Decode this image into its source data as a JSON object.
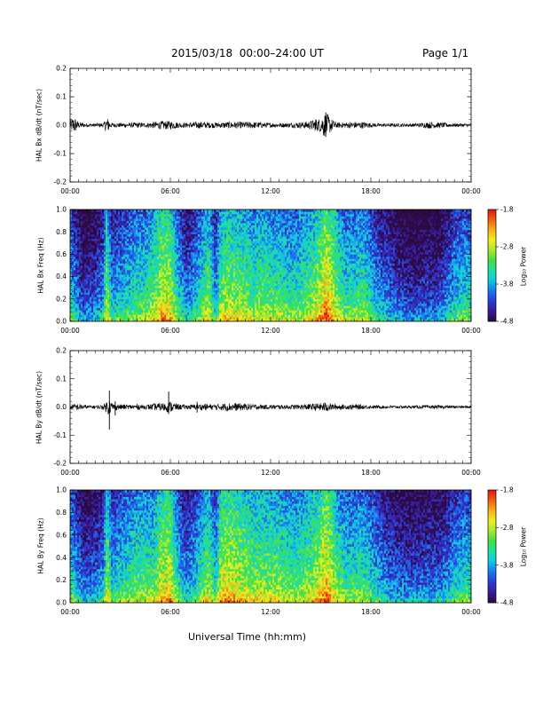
{
  "header": {
    "title": "2015/03/18  00:00–24:00 UT",
    "page": "Page 1/1"
  },
  "xlabel": "Universal Time (hh:mm)",
  "colors": {
    "trace": "#000000",
    "axes": "#000000"
  },
  "colorbar": {
    "title": "Log₁₀ Power",
    "range": [
      -4.8,
      -1.8
    ],
    "tick_labels": [
      "-1.8",
      "-2.8",
      "-3.8",
      "-4.8"
    ],
    "colormap": [
      "#2a0a40",
      "#3a1a9a",
      "#2a3cd6",
      "#1a78f0",
      "#10c8e8",
      "#20e0a0",
      "#40e040",
      "#a8e830",
      "#f0f020",
      "#f8b018",
      "#f06010",
      "#e81010"
    ]
  },
  "chart_data": [
    {
      "type": "line",
      "panel": "bx-dbdt",
      "ylabel": "HAL Bx dB/dt (nT/sec)",
      "x_range": [
        0,
        24
      ],
      "xtick_labels": [
        "00:00",
        "06:00",
        "12:00",
        "18:00",
        "00:00"
      ],
      "ylim": [
        -0.2,
        0.2
      ],
      "ytick_labels": [
        "0.2",
        "0.1",
        "0.0",
        "-0.1",
        "-0.2"
      ],
      "envelope_hours": [
        0,
        0.25,
        0.5,
        1,
        1.5,
        2,
        2.2,
        2.4,
        2.6,
        3,
        3.5,
        4,
        4.5,
        5,
        5.5,
        6,
        6.5,
        7,
        7.5,
        8,
        8.5,
        9,
        9.5,
        10,
        10.5,
        11,
        11.5,
        12,
        12.5,
        13,
        13.5,
        14,
        14.5,
        15,
        15.2,
        15.4,
        15.6,
        15.8,
        16,
        16.5,
        17,
        17.5,
        18,
        18.5,
        19,
        19.5,
        20,
        20.5,
        21,
        21.5,
        22,
        22.5,
        23,
        23.5,
        24
      ],
      "envelope_amplitude": [
        0.02,
        0.03,
        0.012,
        0.006,
        0.006,
        0.008,
        0.03,
        0.01,
        0.008,
        0.008,
        0.008,
        0.01,
        0.008,
        0.012,
        0.015,
        0.015,
        0.01,
        0.008,
        0.012,
        0.012,
        0.01,
        0.01,
        0.012,
        0.012,
        0.012,
        0.012,
        0.01,
        0.008,
        0.008,
        0.008,
        0.01,
        0.012,
        0.018,
        0.025,
        0.045,
        0.04,
        0.025,
        0.015,
        0.01,
        0.01,
        0.012,
        0.012,
        0.008,
        0.006,
        0.006,
        0.006,
        0.006,
        0.006,
        0.008,
        0.012,
        0.01,
        0.008,
        0.006,
        0.006,
        0.006
      ],
      "spikes": [
        {
          "hour": 2.3,
          "min": -0.015,
          "max": 0.012
        },
        {
          "hour": 15.3,
          "min": -0.03,
          "max": 0.045
        },
        {
          "hour": 14.7,
          "min": -0.015,
          "max": 0.02
        }
      ]
    },
    {
      "type": "heatmap",
      "panel": "bx-spectrogram",
      "ylabel": "HAL Bx Freq (Hz)",
      "x_range": [
        0,
        24
      ],
      "xtick_labels": [
        "00:00",
        "06:00",
        "12:00",
        "18:00",
        "00:00"
      ],
      "ylim": [
        0,
        1.0
      ],
      "ytick_labels": [
        "1.0",
        "0.8",
        "0.6",
        "0.4",
        "0.2",
        "0.0"
      ],
      "zlim": [
        -4.8,
        -1.8
      ],
      "activity_hours": [
        0,
        0.3,
        0.8,
        1.5,
        2,
        2.2,
        2.5,
        3,
        3.5,
        4,
        4.5,
        5,
        5.5,
        6,
        6.5,
        7,
        7.5,
        8,
        8.3,
        8.7,
        9,
        9.5,
        10,
        10.5,
        11,
        11.5,
        12,
        12.5,
        13,
        13.5,
        14,
        14.5,
        15,
        15.3,
        15.6,
        16,
        16.5,
        17,
        17.5,
        18,
        18.5,
        19,
        19.5,
        20,
        20.5,
        21,
        21.5,
        22,
        22.5,
        23,
        23.5,
        24
      ],
      "activity_level": [
        0.45,
        0.35,
        0.2,
        0.25,
        0.35,
        0.65,
        0.35,
        0.4,
        0.45,
        0.5,
        0.5,
        0.6,
        0.72,
        0.7,
        0.45,
        0.3,
        0.4,
        0.55,
        0.62,
        0.35,
        0.6,
        0.65,
        0.62,
        0.6,
        0.55,
        0.6,
        0.55,
        0.55,
        0.5,
        0.5,
        0.55,
        0.6,
        0.72,
        0.82,
        0.75,
        0.6,
        0.5,
        0.5,
        0.55,
        0.45,
        0.35,
        0.3,
        0.25,
        0.2,
        0.18,
        0.2,
        0.22,
        0.2,
        0.3,
        0.4,
        0.45,
        0.45
      ]
    },
    {
      "type": "line",
      "panel": "by-dbdt",
      "ylabel": "HAL By dB/dt (nT/sec)",
      "x_range": [
        0,
        24
      ],
      "xtick_labels": [
        "00:00",
        "06:00",
        "12:00",
        "18:00",
        "00:00"
      ],
      "ylim": [
        -0.2,
        0.2
      ],
      "ytick_labels": [
        "0.2",
        "0.1",
        "0.0",
        "-0.1",
        "-0.2"
      ],
      "envelope_hours": [
        0,
        0.5,
        1,
        1.5,
        2,
        2.3,
        2.6,
        3,
        3.5,
        4,
        4.5,
        5,
        5.5,
        6,
        6.5,
        7,
        7.5,
        8,
        8.5,
        9,
        9.5,
        10,
        10.5,
        11,
        11.5,
        12,
        12.5,
        13,
        13.5,
        14,
        14.5,
        15,
        15.3,
        15.6,
        16,
        16.5,
        17,
        17.5,
        18,
        18.5,
        19,
        19.5,
        20,
        20.5,
        21,
        21.5,
        22,
        22.5,
        23,
        23.5,
        24
      ],
      "envelope_amplitude": [
        0.01,
        0.012,
        0.006,
        0.006,
        0.008,
        0.03,
        0.012,
        0.01,
        0.008,
        0.01,
        0.008,
        0.012,
        0.015,
        0.02,
        0.01,
        0.008,
        0.01,
        0.012,
        0.01,
        0.012,
        0.015,
        0.014,
        0.012,
        0.01,
        0.008,
        0.008,
        0.008,
        0.008,
        0.008,
        0.01,
        0.012,
        0.014,
        0.018,
        0.012,
        0.01,
        0.008,
        0.01,
        0.008,
        0.006,
        0.006,
        0.005,
        0.005,
        0.005,
        0.005,
        0.006,
        0.006,
        0.006,
        0.006,
        0.005,
        0.005,
        0.005
      ],
      "spikes": [
        {
          "hour": 2.35,
          "min": -0.08,
          "max": 0.058
        },
        {
          "hour": 5.9,
          "min": -0.025,
          "max": 0.055
        },
        {
          "hour": 2.7,
          "min": -0.03,
          "max": 0.02
        },
        {
          "hour": 7.6,
          "min": -0.02,
          "max": 0.018
        }
      ]
    },
    {
      "type": "heatmap",
      "panel": "by-spectrogram",
      "ylabel": "HAL By Freq (Hz)",
      "x_range": [
        0,
        24
      ],
      "xtick_labels": [
        "00:00",
        "06:00",
        "12:00",
        "18:00",
        "00:00"
      ],
      "ylim": [
        0,
        1.0
      ],
      "ytick_labels": [
        "1.0",
        "0.8",
        "0.6",
        "0.4",
        "0.2",
        "0.0"
      ],
      "zlim": [
        -4.8,
        -1.8
      ],
      "activity_hours": [
        0,
        0.3,
        0.8,
        1.5,
        2,
        2.2,
        2.5,
        3,
        3.5,
        4,
        4.5,
        5,
        5.5,
        6,
        6.5,
        7,
        7.5,
        8,
        8.3,
        8.7,
        9,
        9.5,
        10,
        10.5,
        11,
        11.5,
        12,
        12.5,
        13,
        13.5,
        14,
        14.5,
        15,
        15.3,
        15.6,
        16,
        16.5,
        17,
        17.5,
        18,
        18.5,
        19,
        19.5,
        20,
        20.5,
        21,
        21.5,
        22,
        22.5,
        23,
        23.5,
        24
      ],
      "activity_level": [
        0.5,
        0.4,
        0.25,
        0.28,
        0.35,
        0.68,
        0.4,
        0.45,
        0.5,
        0.55,
        0.55,
        0.55,
        0.7,
        0.72,
        0.45,
        0.32,
        0.42,
        0.55,
        0.62,
        0.4,
        0.7,
        0.72,
        0.7,
        0.65,
        0.6,
        0.62,
        0.6,
        0.6,
        0.55,
        0.55,
        0.58,
        0.62,
        0.72,
        0.8,
        0.72,
        0.58,
        0.5,
        0.5,
        0.52,
        0.45,
        0.38,
        0.3,
        0.28,
        0.25,
        0.25,
        0.25,
        0.27,
        0.25,
        0.32,
        0.4,
        0.45,
        0.45
      ]
    }
  ]
}
